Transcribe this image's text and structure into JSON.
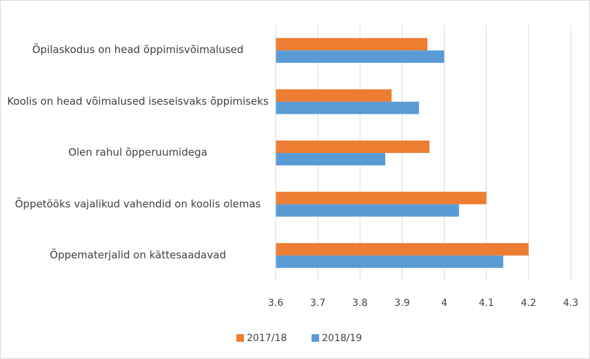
{
  "chart_data": {
    "type": "hbar",
    "categories": [
      "Õpilaskodus on head õppimisvõimalused",
      "Koolis on head võimalused iseseisvaks õppimiseks",
      "Olen rahul õpperuumidega",
      "Õppetööks vajalikud vahendid on koolis olemas",
      "Õppematerjalid on kättesaadavad"
    ],
    "series": [
      {
        "name": "2017/18",
        "color": "#ed7d31",
        "values": [
          3.96,
          3.875,
          3.965,
          4.1,
          4.2
        ]
      },
      {
        "name": "2018/19",
        "color": "#5b9bd5",
        "values": [
          4.0,
          3.94,
          3.86,
          4.035,
          4.14
        ]
      }
    ],
    "xlim": [
      3.6,
      4.3
    ],
    "xticks": [
      3.6,
      3.7,
      3.8,
      3.9,
      4,
      4.1,
      4.2,
      4.3
    ],
    "grid": true,
    "legend": "bottom"
  }
}
